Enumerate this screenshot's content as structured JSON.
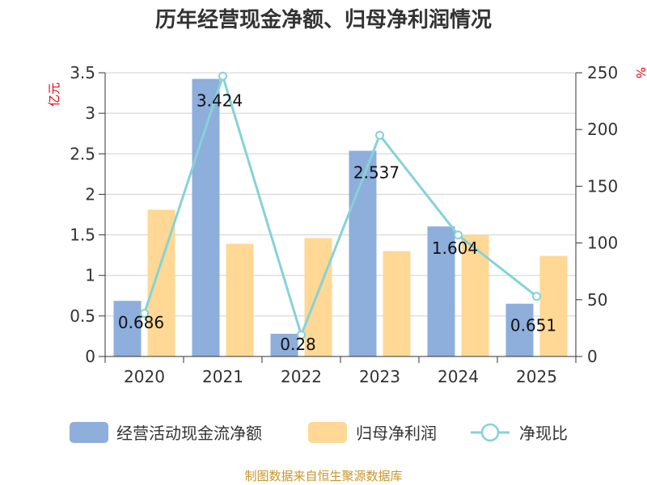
{
  "title": "历年经营现金净额、归母净利润情况",
  "source": "制图数据来自恒生聚源数据库",
  "colors": {
    "cash": "#8eaedc",
    "profit": "#fed894",
    "ratio": "#86d2d8",
    "unit_red": "#e60012"
  },
  "chart_data": {
    "type": "bar",
    "categories": [
      "2020",
      "2021",
      "2022",
      "2023",
      "2024",
      "2025"
    ],
    "series": [
      {
        "name": "经营活动现金流净额",
        "kind": "bar",
        "axis": "left",
        "values": [
          0.686,
          3.424,
          0.28,
          2.537,
          1.604,
          0.651
        ],
        "labels": [
          "0.686",
          "3.424",
          "0.28",
          "2.537",
          "1.604",
          "0.651"
        ]
      },
      {
        "name": "归母净利润",
        "kind": "bar",
        "axis": "left",
        "values": [
          1.81,
          1.39,
          1.46,
          1.3,
          1.5,
          1.24
        ]
      },
      {
        "name": "净现比",
        "kind": "line",
        "axis": "right",
        "values": [
          38,
          247,
          19,
          195,
          107,
          53
        ]
      }
    ],
    "ylabel_left": "亿元",
    "ylabel_right": "%",
    "ylim_left": [
      0,
      3.5
    ],
    "ylim_right": [
      0,
      250
    ],
    "yticks_left": [
      "0",
      "0.5",
      "1",
      "1.5",
      "2",
      "2.5",
      "3",
      "3.5"
    ],
    "yticks_right": [
      "0",
      "50",
      "100",
      "150",
      "200",
      "250"
    ],
    "grid": true,
    "legend": "bottom"
  }
}
